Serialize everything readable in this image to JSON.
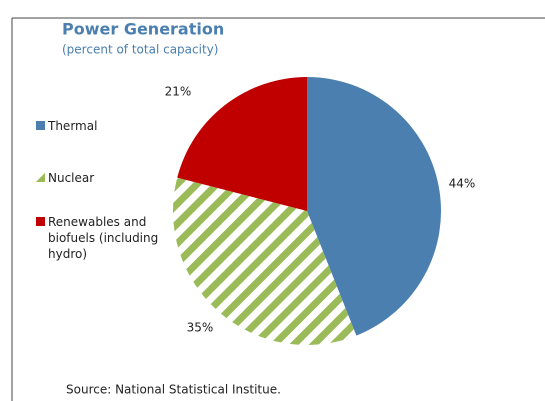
{
  "chart_data": {
    "type": "pie",
    "title": "Power Generation",
    "subtitle": "(percent of total capacity)",
    "categories": [
      "Thermal",
      "Nuclear",
      "Renewables and biofuels (including hydro)"
    ],
    "values": [
      44,
      35,
      21
    ],
    "value_labels": [
      "44%",
      "35%",
      "21%"
    ],
    "colors": [
      "#4a7fb0",
      "#9bbb59",
      "#c00000"
    ],
    "hatched": [
      false,
      true,
      false
    ],
    "source": "Source: National Statistical Institue."
  }
}
